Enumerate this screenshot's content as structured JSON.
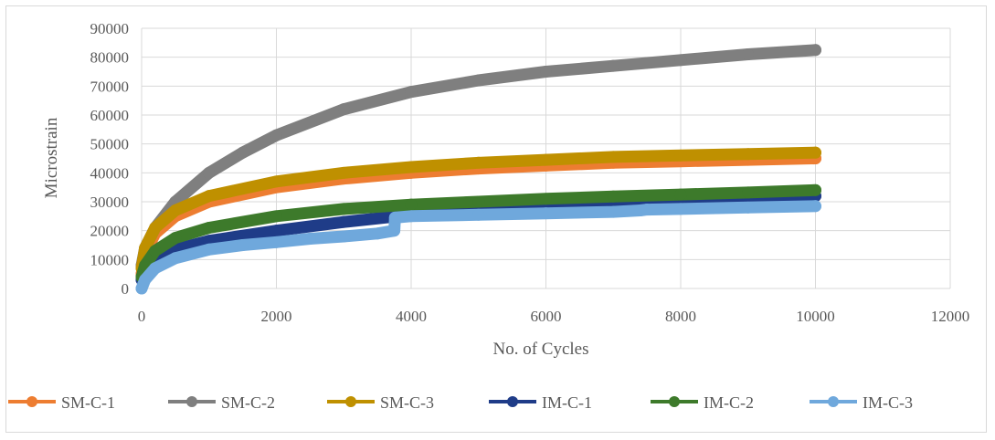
{
  "chart_data": {
    "type": "scatter",
    "title": "",
    "xlabel": "No. of Cycles",
    "ylabel": "Microstrain",
    "xlim": [
      0,
      12000
    ],
    "ylim": [
      0,
      90000
    ],
    "x_ticks": [
      0,
      2000,
      4000,
      6000,
      8000,
      10000,
      12000
    ],
    "y_ticks": [
      0,
      10000,
      20000,
      30000,
      40000,
      50000,
      60000,
      70000,
      80000,
      90000
    ],
    "x_tick_labels": [
      "0",
      "2000",
      "4000",
      "6000",
      "8000",
      "10000",
      "12000"
    ],
    "y_tick_labels": [
      "0",
      "10000",
      "20000",
      "30000",
      "40000",
      "50000",
      "60000",
      "70000",
      "80000",
      "90000"
    ],
    "grid": "vertical and horizontal major gridlines",
    "legend_position": "bottom",
    "series": [
      {
        "name": "SM-C-1",
        "color": "#ed7d31",
        "x": [
          0,
          50,
          200,
          500,
          1000,
          2000,
          3000,
          4000,
          5000,
          6000,
          7000,
          8000,
          9000,
          10000
        ],
        "y": [
          5000,
          12000,
          19000,
          25000,
          30000,
          35000,
          38000,
          40000,
          41500,
          42500,
          43500,
          44000,
          44500,
          45000
        ]
      },
      {
        "name": "SM-C-2",
        "color": "#7f7f7f",
        "x": [
          0,
          50,
          200,
          500,
          1000,
          1500,
          2000,
          3000,
          4000,
          5000,
          6000,
          7000,
          8000,
          9000,
          10000
        ],
        "y": [
          8000,
          14000,
          21000,
          30000,
          40000,
          47000,
          53000,
          62000,
          68000,
          72000,
          75000,
          77000,
          79000,
          81000,
          82500
        ]
      },
      {
        "name": "SM-C-3",
        "color": "#bf9000",
        "x": [
          0,
          50,
          200,
          500,
          1000,
          2000,
          3000,
          4000,
          5000,
          6000,
          7000,
          8000,
          9000,
          10000
        ],
        "y": [
          7000,
          14000,
          21000,
          27000,
          32000,
          37000,
          40000,
          42000,
          43500,
          44500,
          45500,
          46000,
          46500,
          47000
        ]
      },
      {
        "name": "IM-C-1",
        "color": "#1f3c88",
        "x": [
          0,
          50,
          200,
          500,
          1000,
          2000,
          3000,
          4000,
          5000,
          6000,
          7000,
          8000,
          9000,
          10000
        ],
        "y": [
          3000,
          6000,
          10000,
          13500,
          16500,
          20000,
          23000,
          25500,
          27000,
          28500,
          29500,
          30500,
          31500,
          32000
        ]
      },
      {
        "name": "IM-C-2",
        "color": "#3d7a2b",
        "x": [
          0,
          50,
          200,
          500,
          1000,
          2000,
          3000,
          4000,
          5000,
          6000,
          7000,
          8000,
          9000,
          10000
        ],
        "y": [
          4000,
          8000,
          13000,
          17500,
          21000,
          25000,
          27500,
          29000,
          30000,
          31000,
          31800,
          32500,
          33200,
          34000
        ]
      },
      {
        "name": "IM-C-3",
        "color": "#6fa8dc",
        "x": [
          0,
          50,
          200,
          500,
          1000,
          1500,
          2000,
          2500,
          3000,
          3500,
          3750,
          3760,
          4000,
          5000,
          6000,
          7000,
          7400,
          7500,
          8000,
          9000,
          10000
        ],
        "y": [
          0,
          3000,
          7000,
          10500,
          13500,
          15000,
          16000,
          17200,
          18000,
          19000,
          20000,
          24500,
          25000,
          25500,
          26000,
          26500,
          27000,
          27300,
          27500,
          28000,
          28500
        ]
      }
    ]
  }
}
